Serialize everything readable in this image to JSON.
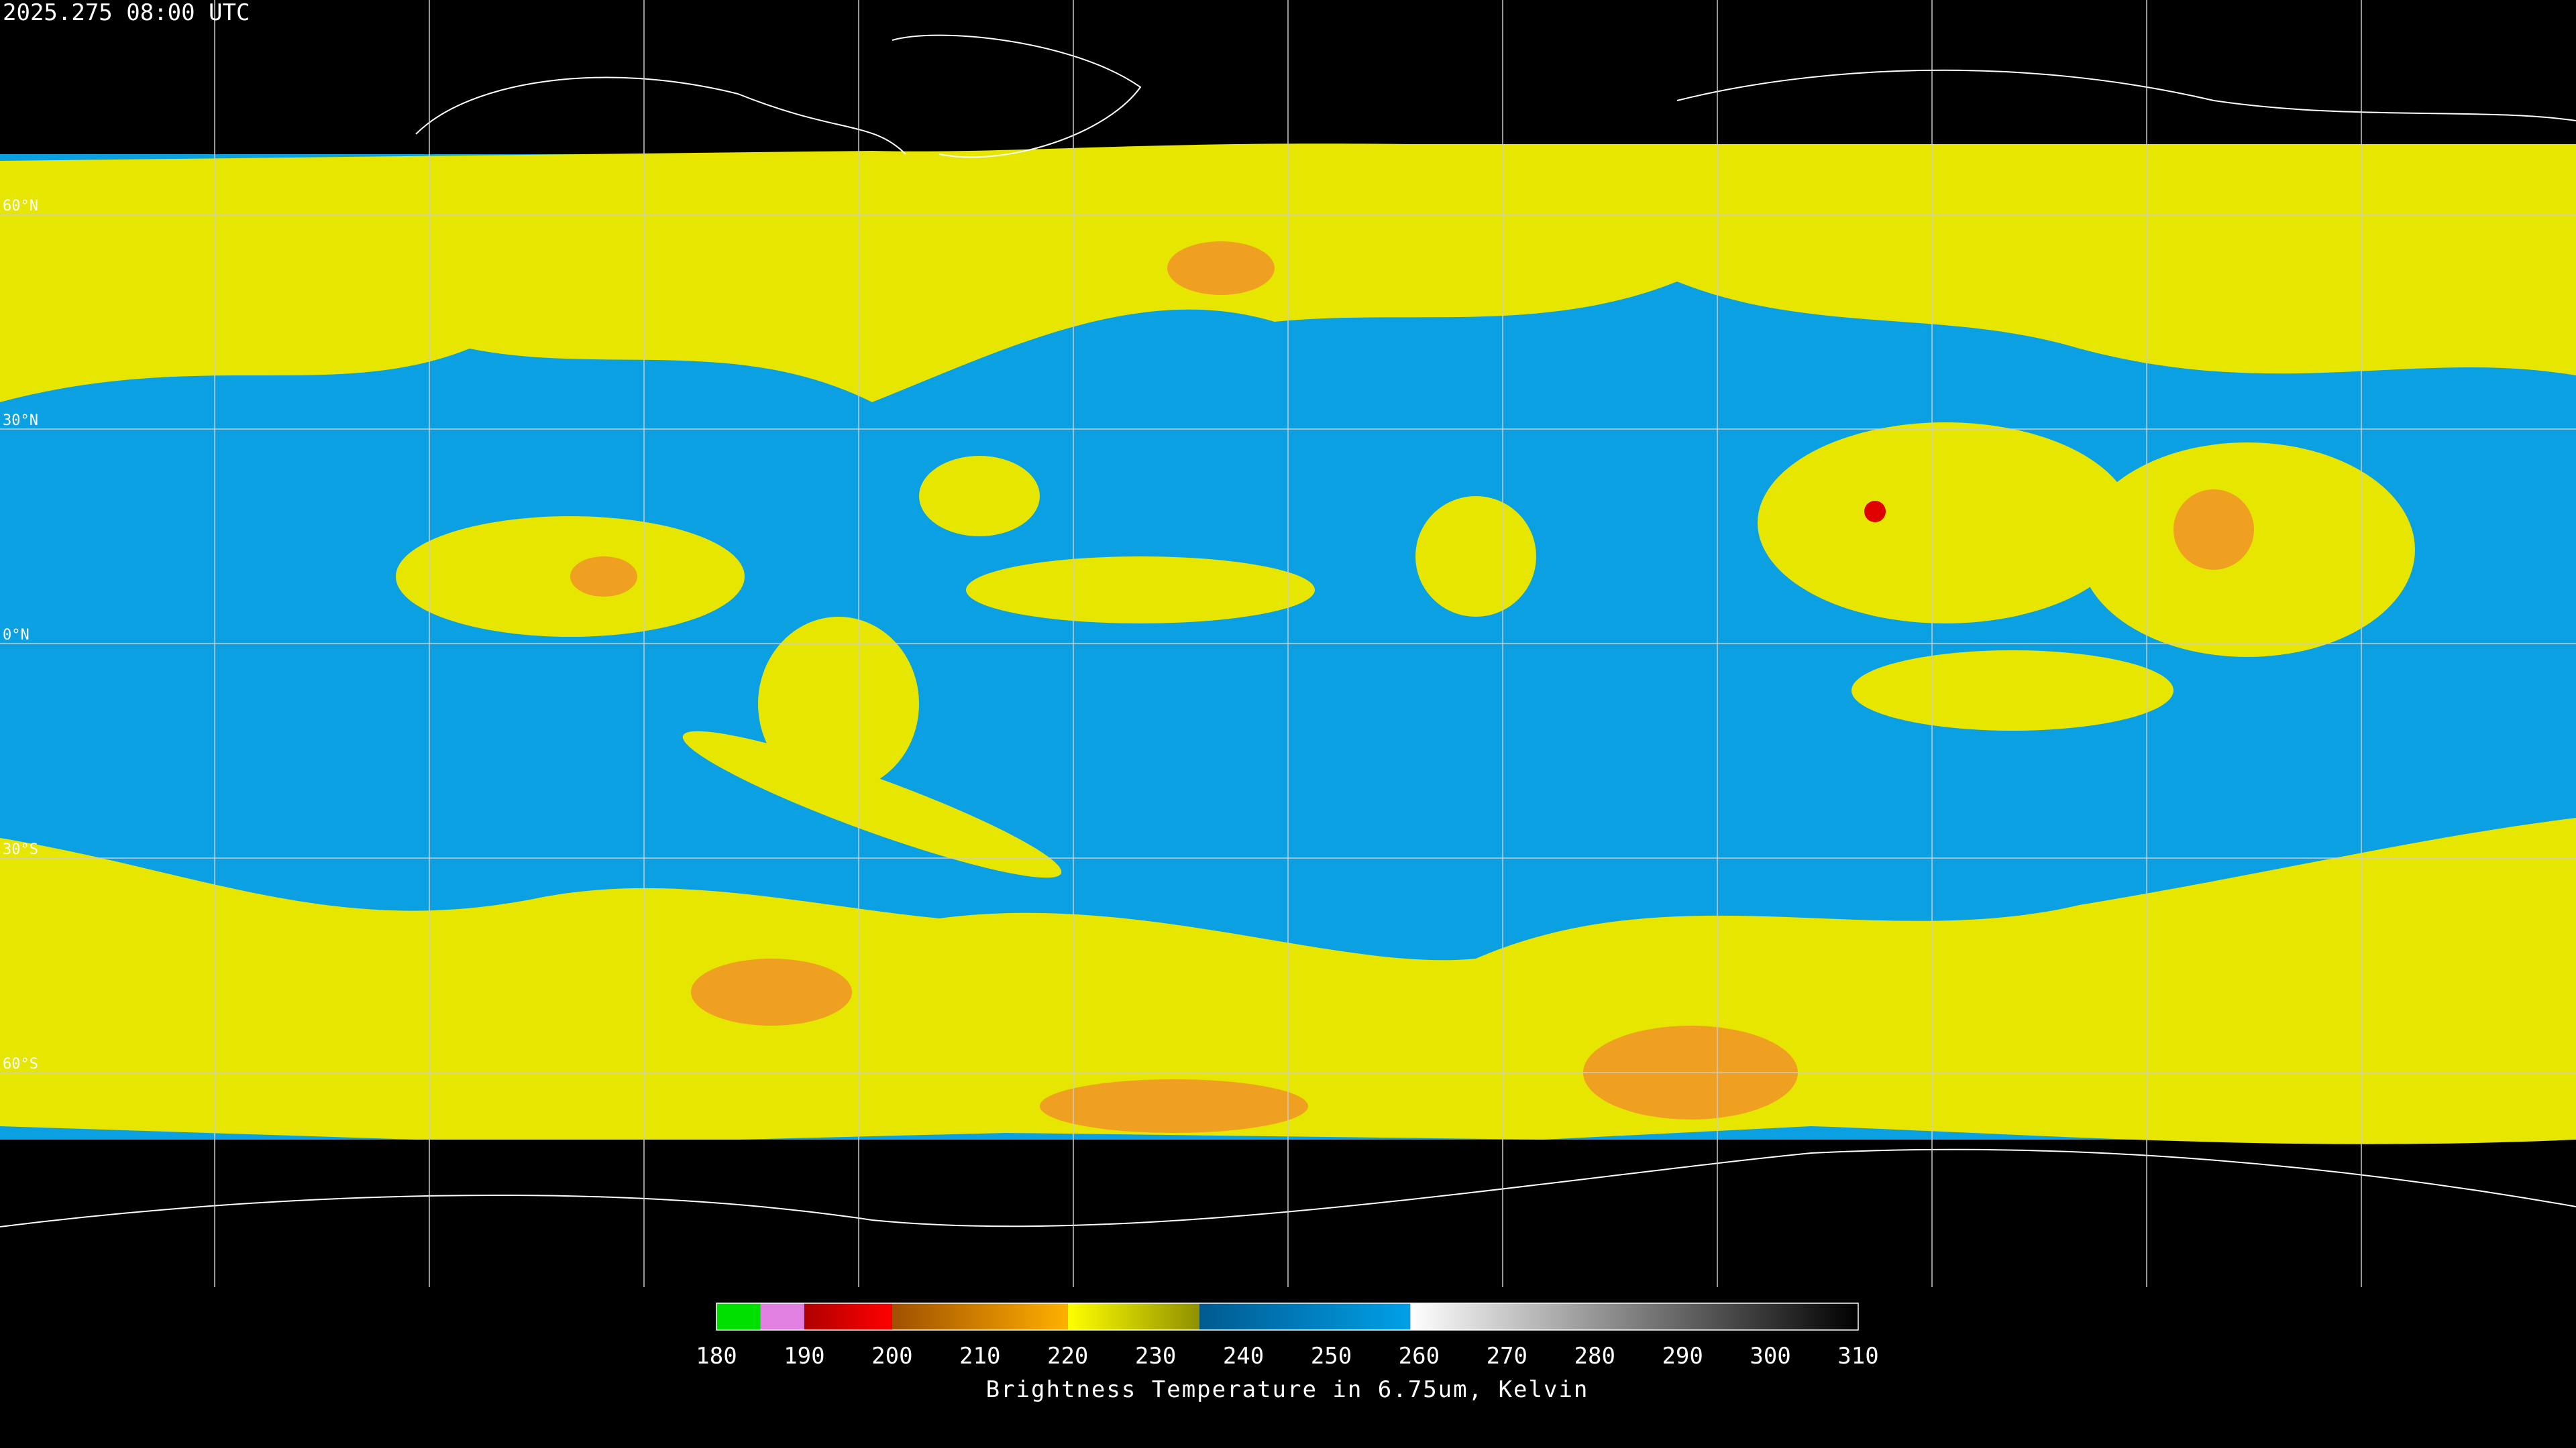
{
  "header": {
    "timestamp": "2025.275 08:00 UTC"
  },
  "map": {
    "lonlim": [
      -180,
      180
    ],
    "latlim": [
      -90,
      90
    ],
    "meridians": [
      -150,
      -120,
      -90,
      -60,
      -30,
      0,
      30,
      60,
      90,
      120,
      150
    ],
    "parallels": [
      {
        "value": 60,
        "label": "60°N"
      },
      {
        "value": 30,
        "label": "30°N"
      },
      {
        "value": 0,
        "label": "0°N"
      },
      {
        "value": -30,
        "label": "30°S"
      },
      {
        "value": -60,
        "label": "60°S"
      }
    ]
  },
  "colorbar": {
    "range": [
      180,
      310
    ],
    "ticks": [
      180,
      190,
      200,
      210,
      220,
      230,
      240,
      250,
      260,
      270,
      280,
      290,
      300,
      310
    ],
    "label": "Brightness Temperature in 6.75um, Kelvin",
    "segments": [
      {
        "from": 180,
        "to": 185,
        "color_start": "#00e000",
        "color_end": "#00e000"
      },
      {
        "from": 185,
        "to": 190,
        "color_start": "#e080e0",
        "color_end": "#e080e0"
      },
      {
        "from": 190,
        "to": 200,
        "color_start": "#b00000",
        "color_end": "#ff0000"
      },
      {
        "from": 200,
        "to": 220,
        "color_start": "#a05000",
        "color_end": "#ffb000"
      },
      {
        "from": 220,
        "to": 235,
        "color_start": "#ffff00",
        "color_end": "#909000"
      },
      {
        "from": 235,
        "to": 259,
        "color_start": "#005a90",
        "color_end": "#00a0e8"
      },
      {
        "from": 259,
        "to": 310,
        "color_start": "#ffffff",
        "color_end": "#000000"
      }
    ]
  }
}
